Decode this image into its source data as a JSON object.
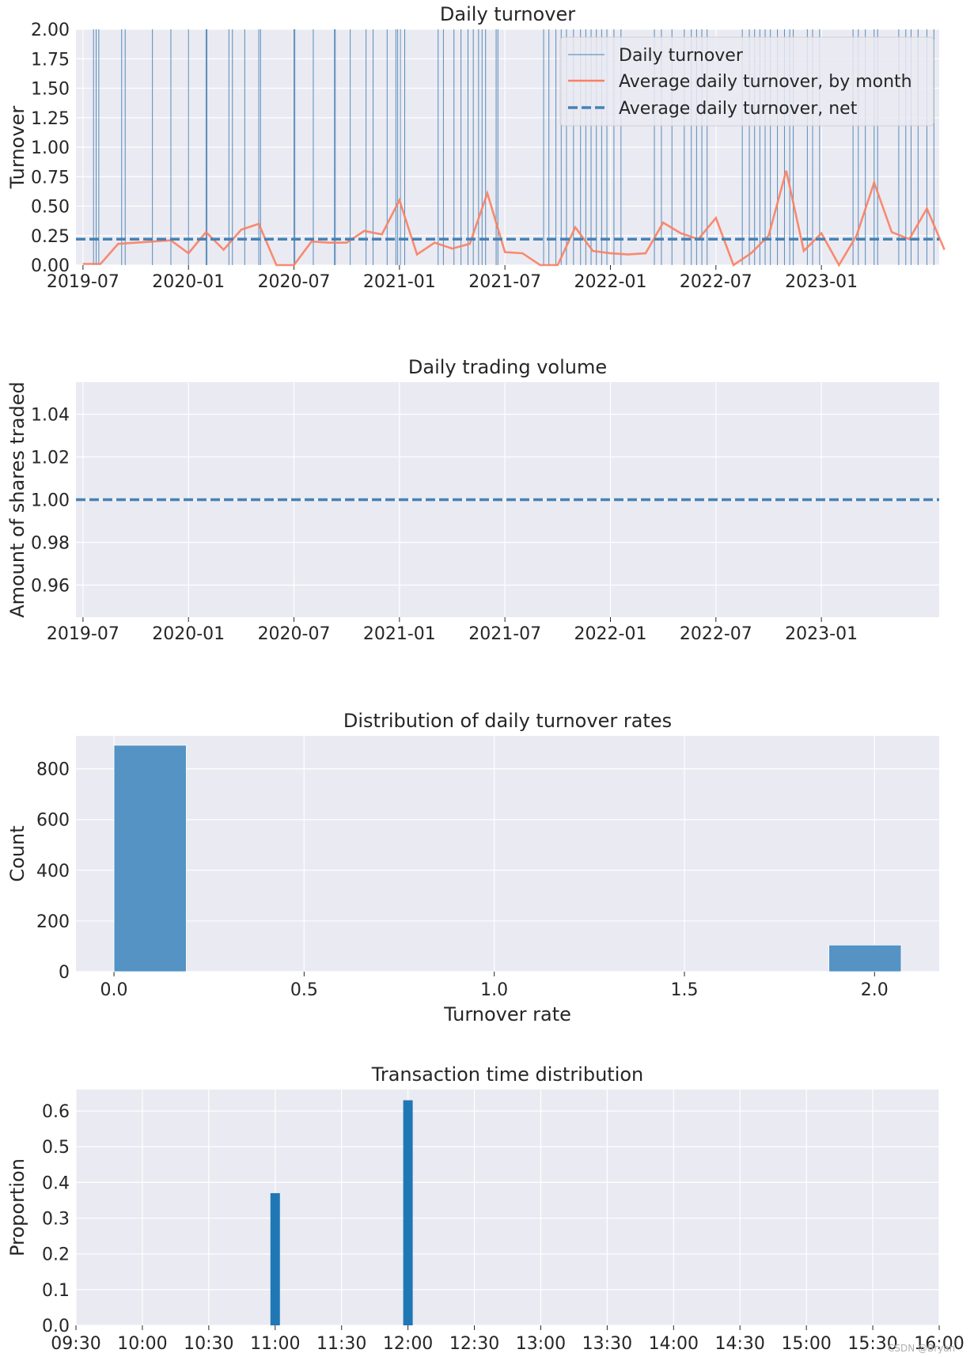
{
  "colors": {
    "axes_bg": "#EAEAF2",
    "grid": "#FFFFFF",
    "daily_turnover": "#4682B4",
    "monthly_avg": "#FA8060",
    "net_avg": "#4682B4",
    "hist_bar": "#4C8FC2",
    "time_bar": "#1F77B4"
  },
  "watermark": "CSDN @Bryan",
  "chart_data": [
    {
      "id": "turnover",
      "type": "line",
      "title": "Daily turnover",
      "xlabel": "",
      "ylabel": "Turnover",
      "xticks": [
        "2019-07",
        "2020-01",
        "2020-07",
        "2021-01",
        "2021-07",
        "2022-01",
        "2022-07",
        "2023-01"
      ],
      "xrange_months": [
        -0.4,
        48.7
      ],
      "ylim": [
        0,
        2.0
      ],
      "yticks": [
        "0.00",
        "0.25",
        "0.50",
        "0.75",
        "1.00",
        "1.25",
        "1.50",
        "1.75",
        "2.00"
      ],
      "legend": {
        "position": "upper right",
        "entries": [
          "Daily turnover",
          "Average daily turnover, by month",
          "Average daily turnover, net"
        ]
      },
      "series": [
        {
          "name": "Average daily turnover, by month",
          "style": "solid",
          "x_month_index": [
            0,
            1,
            2,
            3,
            4,
            5,
            6,
            7,
            8,
            9,
            10,
            11,
            12,
            13,
            14,
            15,
            16,
            17,
            18,
            19,
            20,
            21,
            22,
            23,
            24,
            25,
            26,
            27,
            28,
            29,
            30,
            31,
            32,
            33,
            34,
            35,
            36,
            37,
            38,
            39,
            40,
            41,
            42,
            43,
            44,
            45,
            46,
            47,
            48,
            49
          ],
          "values": [
            0.01,
            0.01,
            0.18,
            0.19,
            0.2,
            0.21,
            0.1,
            0.28,
            0.13,
            0.3,
            0.35,
            0.0,
            0.0,
            0.2,
            0.19,
            0.19,
            0.29,
            0.26,
            0.55,
            0.09,
            0.19,
            0.14,
            0.18,
            0.61,
            0.11,
            0.1,
            0.0,
            0.0,
            0.32,
            0.12,
            0.1,
            0.09,
            0.1,
            0.36,
            0.27,
            0.22,
            0.4,
            0.0,
            0.1,
            0.25,
            0.8,
            0.12,
            0.27,
            0.0,
            0.25,
            0.7,
            0.28,
            0.22,
            0.48,
            0.13
          ]
        },
        {
          "name": "Average daily turnover, net",
          "style": "dashed",
          "value": 0.22
        },
        {
          "name": "Daily turnover",
          "style": "thin",
          "spike_value": 2.0,
          "spike_month_positions": [
            0.6,
            0.75,
            0.9,
            2.2,
            2.4,
            3.95,
            5.0,
            6.0,
            7.0,
            7.05,
            8.3,
            8.5,
            9.2,
            10.0,
            10.1,
            12.0,
            12.05,
            13.1,
            14.3,
            14.35,
            15.2,
            16.1,
            16.5,
            17.3,
            17.8,
            17.9,
            18.05,
            18.3,
            20.2,
            20.5,
            21.1,
            21.5,
            21.9,
            22.2,
            22.5,
            22.7,
            22.9,
            23.5,
            23.6,
            26.2,
            26.5,
            26.9,
            27.2,
            27.5,
            27.9,
            28.3,
            28.6,
            28.9,
            29.2,
            29.5,
            29.8,
            30.2,
            30.6,
            32.5,
            32.9,
            33.5,
            34.2,
            34.6,
            34.9,
            35.2,
            35.5,
            37.5,
            37.9,
            38.2,
            38.5,
            38.8,
            39.1,
            39.5,
            39.9,
            40.2,
            40.4,
            41.2,
            41.5,
            41.9,
            43.8,
            44.1,
            44.5,
            45.0,
            45.2,
            46.4,
            46.8,
            47.1,
            47.5,
            48.0,
            48.4
          ]
        }
      ]
    },
    {
      "id": "volume",
      "type": "line",
      "title": "Daily trading volume",
      "xlabel": "",
      "ylabel": "Amount of shares traded",
      "xticks": [
        "2019-07",
        "2020-01",
        "2020-07",
        "2021-01",
        "2021-07",
        "2022-01",
        "2022-07",
        "2023-01"
      ],
      "xrange_months": [
        -0.4,
        48.7
      ],
      "ylim": [
        0.945,
        1.055
      ],
      "yticks": [
        "0.96",
        "0.98",
        "1.00",
        "1.02",
        "1.04"
      ],
      "series": [
        {
          "name": "Daily trading volume",
          "style": "dashed",
          "value": 1.0
        }
      ]
    },
    {
      "id": "hist",
      "type": "bar",
      "title": "Distribution of daily turnover rates",
      "xlabel": "Turnover rate",
      "ylabel": "Count",
      "xlim": [
        -0.1,
        2.17
      ],
      "ylim": [
        0,
        930
      ],
      "xticks": [
        "0.0",
        "0.5",
        "1.0",
        "1.5",
        "2.0"
      ],
      "yticks": [
        "0",
        "200",
        "400",
        "600",
        "800"
      ],
      "bins": [
        {
          "x0": 0.0,
          "x1": 0.19,
          "count": 893
        },
        {
          "x0": 1.88,
          "x1": 2.07,
          "count": 105
        }
      ]
    },
    {
      "id": "timedist",
      "type": "bar",
      "title": "Transaction time distribution",
      "xlabel": "",
      "ylabel": "Proportion",
      "xlim_minutes": [
        570,
        960
      ],
      "ylim": [
        0,
        0.66
      ],
      "xticks": [
        "09:30",
        "10:00",
        "10:30",
        "11:00",
        "11:30",
        "12:00",
        "12:30",
        "13:00",
        "13:30",
        "14:00",
        "14:30",
        "15:00",
        "15:30",
        "16:00"
      ],
      "yticks": [
        "0.0",
        "0.1",
        "0.2",
        "0.3",
        "0.4",
        "0.5",
        "0.6"
      ],
      "bars": [
        {
          "time": "11:00",
          "minute": 660,
          "value": 0.37
        },
        {
          "time": "12:00",
          "minute": 720,
          "value": 0.63
        }
      ]
    }
  ]
}
